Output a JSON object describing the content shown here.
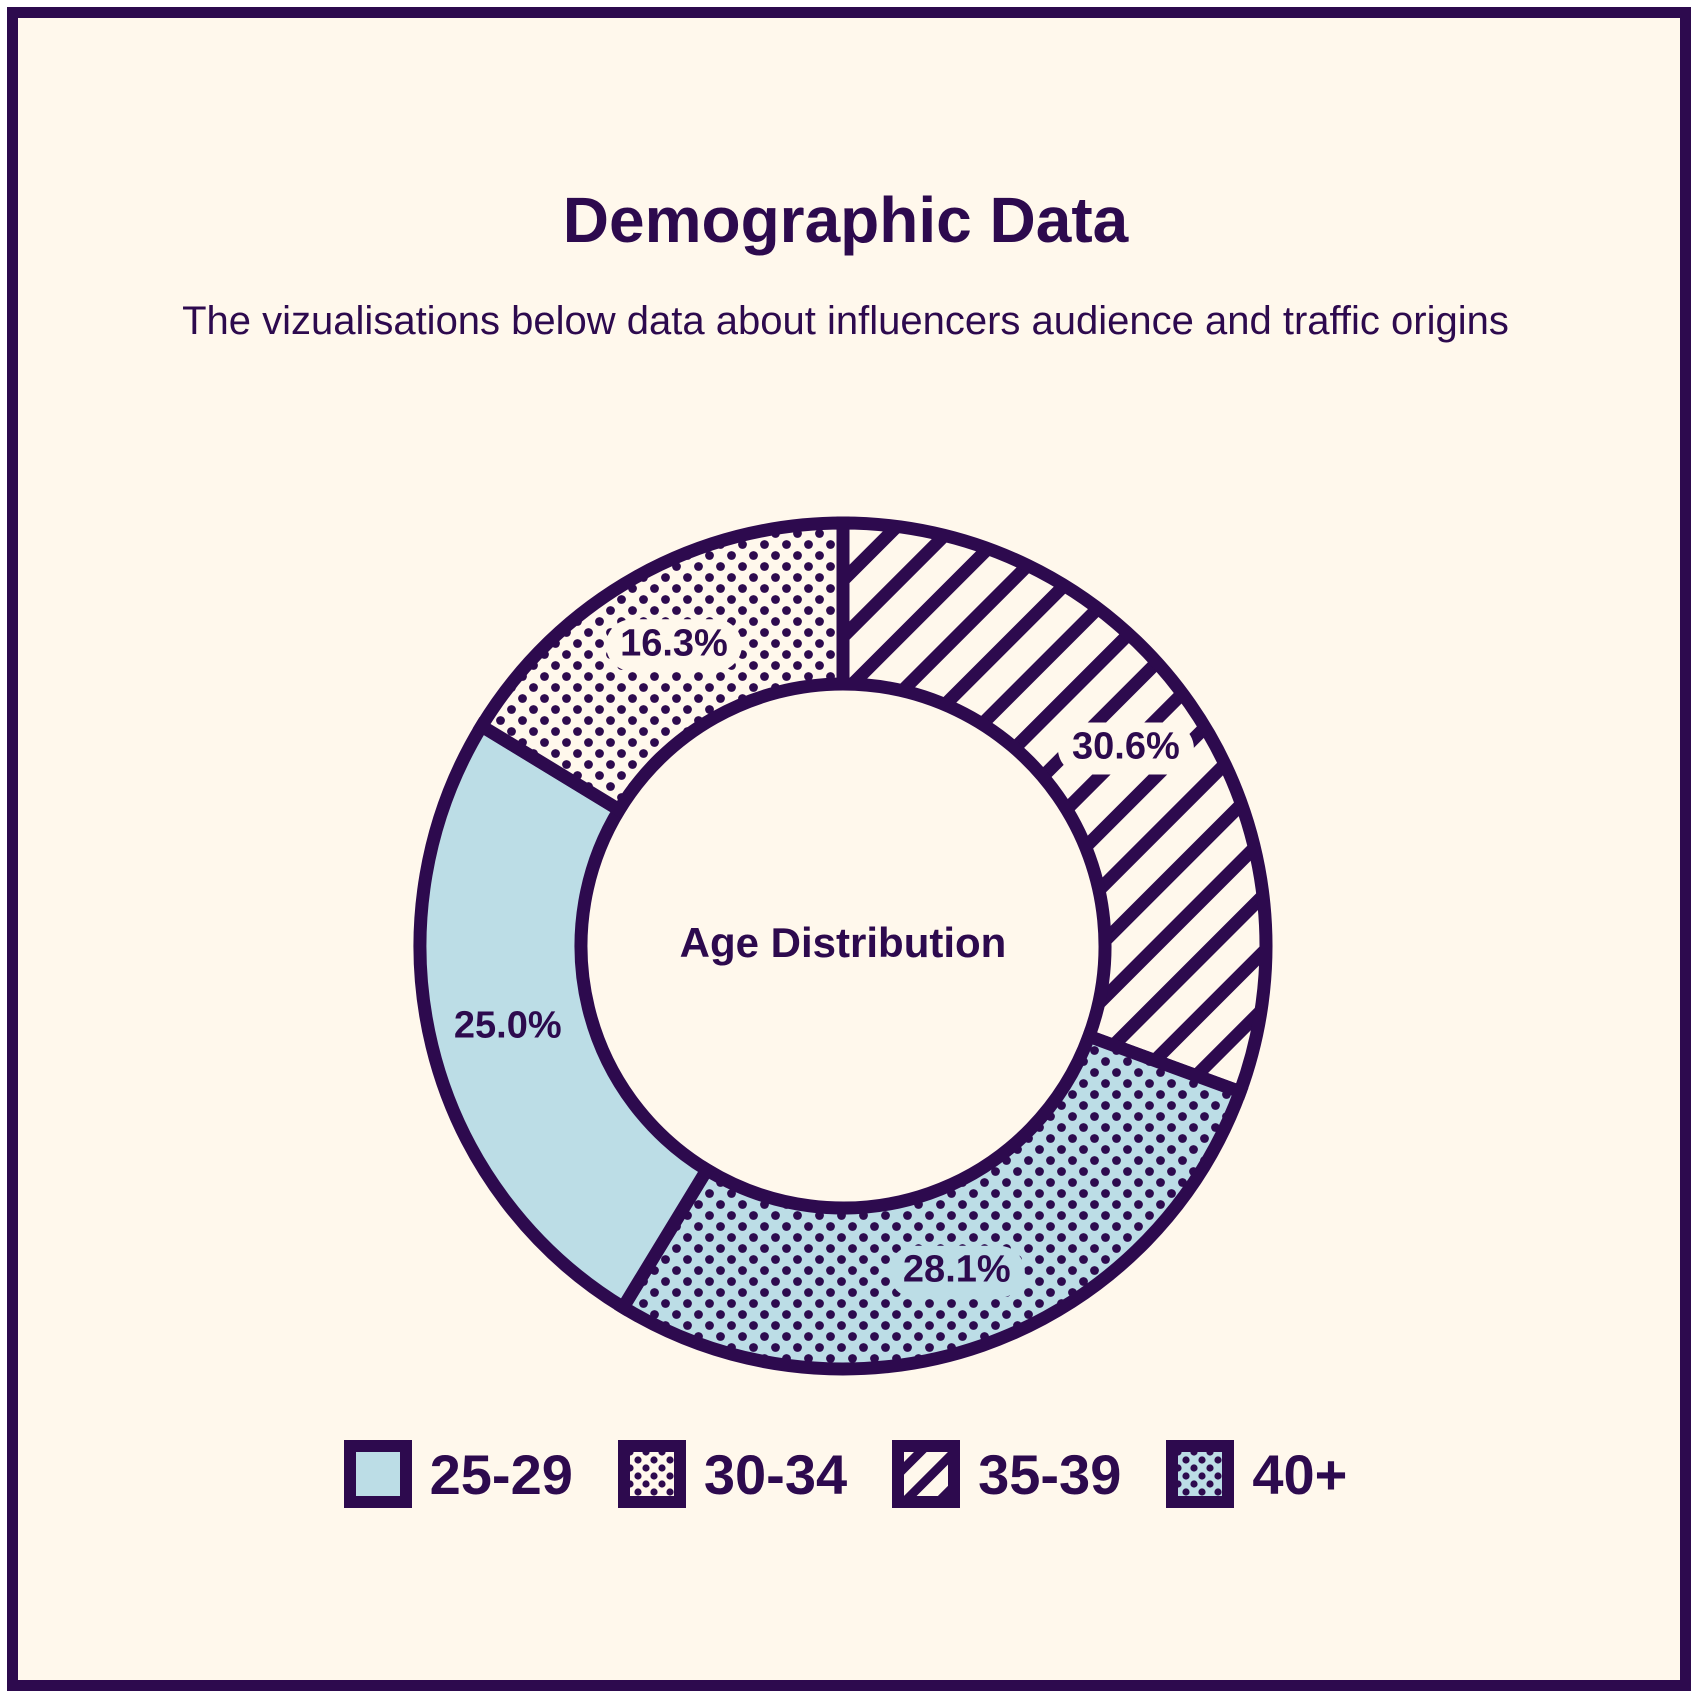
{
  "header": {
    "title": "Demographic Data",
    "subtitle": "The vizualisations below data about influencers audience and traffic origins"
  },
  "colors": {
    "ink": "#2d0a4e",
    "background": "#fff8ec",
    "light_blue": "#bcdde6"
  },
  "chart_data": {
    "type": "pie",
    "variant": "donut",
    "center_label": "Age Distribution",
    "legend_position": "bottom",
    "start": "top",
    "direction": "clockwise",
    "slices": [
      {
        "label": "35-39",
        "value": 30.6,
        "value_label": "30.6%",
        "pattern": "diagonal-stripes",
        "fill": "#fff8ec"
      },
      {
        "label": "40+",
        "value": 28.1,
        "value_label": "28.1%",
        "pattern": "dots",
        "fill": "#bcdde6"
      },
      {
        "label": "25-29",
        "value": 25.0,
        "value_label": "25.0%",
        "pattern": "solid",
        "fill": "#bcdde6"
      },
      {
        "label": "30-34",
        "value": 16.3,
        "value_label": "16.3%",
        "pattern": "dots",
        "fill": "#fff8ec"
      }
    ],
    "legend": [
      "25-29",
      "30-34",
      "35-39",
      "40+"
    ]
  }
}
